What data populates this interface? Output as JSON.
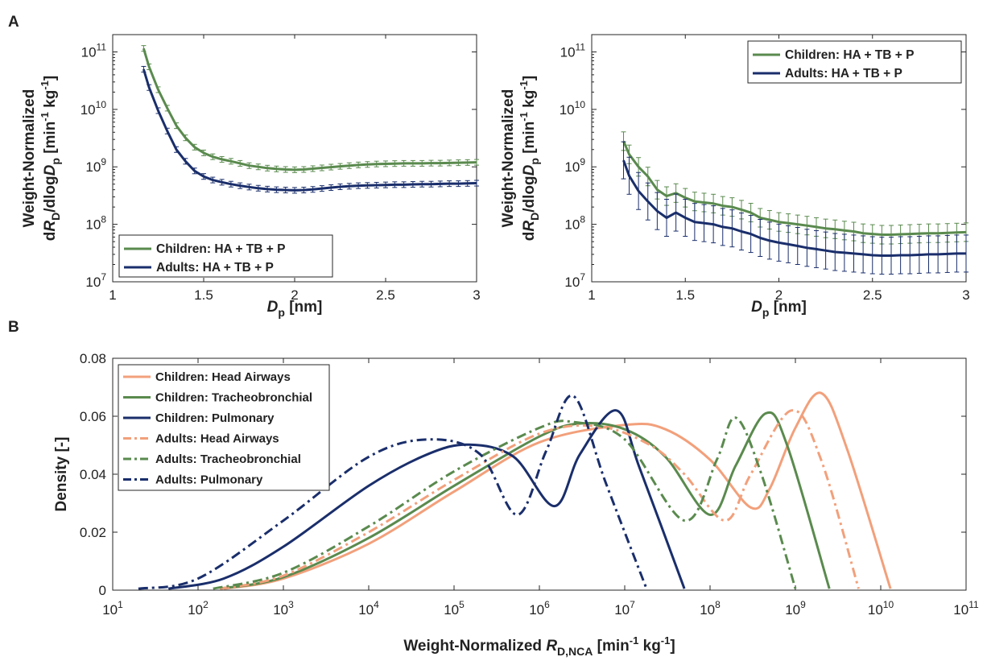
{
  "panels": {
    "a": "A",
    "b": "B"
  },
  "chart_data": [
    {
      "type": "line",
      "panel": "A",
      "xlabel": "D p [nm]",
      "ylabel_line1": "Weight-Normalized",
      "ylabel_line2": "dR D /dlogD p [min-1 kg-1]",
      "xlim": [
        1,
        3
      ],
      "ylim": [
        10000000.0,
        200000000000.0
      ],
      "yscale": "log",
      "xticks": [
        "1",
        "1.5",
        "2",
        "2.5",
        "3"
      ],
      "yticks": [
        "10^7",
        "10^8",
        "10^9",
        "10^10",
        "10^11"
      ],
      "legend_position": "bottom-left",
      "x": [
        1.17,
        1.2,
        1.25,
        1.3,
        1.35,
        1.4,
        1.45,
        1.5,
        1.55,
        1.6,
        1.65,
        1.7,
        1.75,
        1.8,
        1.85,
        1.9,
        1.95,
        2.0,
        2.05,
        2.1,
        2.15,
        2.2,
        2.25,
        2.3,
        2.35,
        2.4,
        2.45,
        2.5,
        2.55,
        2.6,
        2.65,
        2.7,
        2.75,
        2.8,
        2.85,
        2.9,
        2.95,
        3.0
      ],
      "series": [
        {
          "name": "Children: HA + TB + P",
          "color": "#5a8a4e",
          "values": [
            115000000000.0,
            55000000000.0,
            22000000000.0,
            10500000000.0,
            5200000000.0,
            3200000000.0,
            2200000000.0,
            1750000000.0,
            1500000000.0,
            1350000000.0,
            1250000000.0,
            1150000000.0,
            1050000000.0,
            1000000000.0,
            950000000.0,
            920000000.0,
            900000000.0,
            890000000.0,
            900000000.0,
            930000000.0,
            960000000.0,
            990000000.0,
            1020000000.0,
            1050000000.0,
            1080000000.0,
            1100000000.0,
            1120000000.0,
            1130000000.0,
            1140000000.0,
            1150000000.0,
            1150000000.0,
            1150000000.0,
            1160000000.0,
            1160000000.0,
            1170000000.0,
            1180000000.0,
            1190000000.0,
            1200000000.0
          ]
        },
        {
          "name": "Adults: HA + TB + P",
          "color": "#1a2e6b",
          "values": [
            50000000000.0,
            24000000000.0,
            9500000000.0,
            4200000000.0,
            2000000000.0,
            1250000000.0,
            850000000.0,
            680000000.0,
            590000000.0,
            540000000.0,
            500000000.0,
            470000000.0,
            445000000.0,
            425000000.0,
            410000000.0,
            400000000.0,
            395000000.0,
            390000000.0,
            395000000.0,
            405000000.0,
            420000000.0,
            435000000.0,
            450000000.0,
            460000000.0,
            470000000.0,
            475000000.0,
            480000000.0,
            485000000.0,
            490000000.0,
            490000000.0,
            495000000.0,
            500000000.0,
            500000000.0,
            505000000.0,
            510000000.0,
            510000000.0,
            515000000.0,
            520000000.0
          ]
        }
      ]
    },
    {
      "type": "line",
      "panel": "A",
      "xlabel": "D p [nm]",
      "ylabel_line1": "Weight-Normalized",
      "ylabel_line2": "dR D /dlogD p [min-1 kg-1]",
      "xlim": [
        1,
        3
      ],
      "ylim": [
        10000000.0,
        200000000000.0
      ],
      "yscale": "log",
      "xticks": [
        "1",
        "1.5",
        "2",
        "2.5",
        "3"
      ],
      "yticks": [
        "10^7",
        "10^8",
        "10^9",
        "10^10",
        "10^11"
      ],
      "legend_position": "top-right",
      "x": [
        1.17,
        1.2,
        1.25,
        1.3,
        1.35,
        1.4,
        1.45,
        1.5,
        1.55,
        1.6,
        1.65,
        1.7,
        1.75,
        1.8,
        1.85,
        1.9,
        1.95,
        2.0,
        2.05,
        2.1,
        2.15,
        2.2,
        2.25,
        2.3,
        2.35,
        2.4,
        2.45,
        2.5,
        2.55,
        2.6,
        2.65,
        2.7,
        2.75,
        2.8,
        2.85,
        2.9,
        2.95,
        3.0
      ],
      "series": [
        {
          "name": "Children: HA + TB + P",
          "color": "#5a8a4e",
          "values": [
            2800000000.0,
            1650000000.0,
            1000000000.0,
            680000000.0,
            400000000.0,
            310000000.0,
            350000000.0,
            290000000.0,
            250000000.0,
            240000000.0,
            230000000.0,
            210000000.0,
            200000000.0,
            180000000.0,
            160000000.0,
            130000000.0,
            120000000.0,
            110000000.0,
            105000000.0,
            100000000.0,
            95000000.0,
            90000000.0,
            85000000.0,
            82000000.0,
            78000000.0,
            75000000.0,
            70000000.0,
            68000000.0,
            66000000.0,
            66000000.0,
            67000000.0,
            68000000.0,
            69000000.0,
            70000000.0,
            70000000.0,
            71000000.0,
            72000000.0,
            73000000.0
          ]
        },
        {
          "name": "Adults: HA + TB + P",
          "color": "#1a2e6b",
          "values": [
            1300000000.0,
            700000000.0,
            380000000.0,
            250000000.0,
            170000000.0,
            130000000.0,
            160000000.0,
            130000000.0,
            110000000.0,
            105000000.0,
            100000000.0,
            90000000.0,
            85000000.0,
            75000000.0,
            68000000.0,
            58000000.0,
            52000000.0,
            48000000.0,
            45000000.0,
            42000000.0,
            39000000.0,
            37000000.0,
            35000000.0,
            33000000.0,
            32000000.0,
            31000000.0,
            30000000.0,
            29000000.0,
            28500000.0,
            28500000.0,
            29000000.0,
            29000000.0,
            29500000.0,
            30000000.0,
            30000000.0,
            30500000.0,
            31000000.0,
            31000000.0
          ]
        }
      ]
    },
    {
      "type": "line",
      "panel": "B",
      "xlabel": "Weight-Normalized R D,NCA [min-1 kg-1]",
      "ylabel": "Density [-]",
      "xscale": "log",
      "xlim": [
        10,
        100000000000.0
      ],
      "ylim": [
        0,
        0.08
      ],
      "xticks": [
        "10^1",
        "10^2",
        "10^3",
        "10^4",
        "10^5",
        "10^6",
        "10^7",
        "10^8",
        "10^9",
        "10^10",
        "10^11"
      ],
      "yticks": [
        "0",
        "0.02",
        "0.04",
        "0.06",
        "0.08"
      ],
      "legend_position": "top-left",
      "series": [
        {
          "name": "Children: Head Airways",
          "color": "#f2a07b",
          "dash": "solid",
          "x": [
            200,
            1000,
            10000.0,
            100000.0,
            1000000.0,
            10000000.0,
            30000000.0,
            100000000.0,
            300000000.0,
            500000000.0,
            1000000000.0,
            2000000000.0,
            4000000000.0,
            13000000000.0
          ],
          "values": [
            0.0005,
            0.004,
            0.016,
            0.034,
            0.051,
            0.057,
            0.0555,
            0.045,
            0.0285,
            0.035,
            0.056,
            0.068,
            0.049,
            0.0005
          ]
        },
        {
          "name": "Children: Tracheobronchial",
          "color": "#5a8a4e",
          "dash": "solid",
          "x": [
            180,
            1000,
            10000.0,
            100000.0,
            1000000.0,
            3000000.0,
            10000000.0,
            30000000.0,
            100000000.0,
            200000000.0,
            450000000.0,
            800000000.0,
            2500000000.0
          ],
          "values": [
            0.0005,
            0.0045,
            0.018,
            0.036,
            0.053,
            0.0575,
            0.0555,
            0.046,
            0.026,
            0.043,
            0.061,
            0.05,
            0.0005
          ]
        },
        {
          "name": "Children: Pulmonary",
          "color": "#1a2e6b",
          "dash": "solid",
          "x": [
            45,
            200,
            1000,
            10000.0,
            50000.0,
            150000.0,
            500000.0,
            1500000.0,
            3000000.0,
            8000000.0,
            15000000.0,
            50000000.0
          ],
          "values": [
            0.0005,
            0.004,
            0.015,
            0.036,
            0.047,
            0.0502,
            0.046,
            0.029,
            0.047,
            0.062,
            0.042,
            0.0005
          ]
        },
        {
          "name": "Adults: Head Airways",
          "color": "#f2a07b",
          "dash": "dashdot",
          "x": [
            180,
            1000,
            10000.0,
            100000.0,
            1000000.0,
            5000000.0,
            20000000.0,
            50000000.0,
            150000000.0,
            300000000.0,
            900000000.0,
            2000000000.0,
            5500000000.0
          ],
          "values": [
            0.0005,
            0.005,
            0.02,
            0.038,
            0.054,
            0.0565,
            0.05,
            0.04,
            0.024,
            0.04,
            0.062,
            0.045,
            0.0005
          ]
        },
        {
          "name": "Adults: Tracheobronchial",
          "color": "#5a8a4e",
          "dash": "dashdot",
          "x": [
            150,
            1000,
            10000.0,
            100000.0,
            1000000.0,
            2500000.0,
            10000000.0,
            50000000.0,
            120000000.0,
            200000000.0,
            400000000.0,
            1000000000.0
          ],
          "values": [
            0.0005,
            0.006,
            0.022,
            0.041,
            0.056,
            0.058,
            0.052,
            0.024,
            0.045,
            0.0595,
            0.04,
            0.0005
          ]
        },
        {
          "name": "Adults: Pulmonary",
          "color": "#1a2e6b",
          "dash": "dashdot",
          "x": [
            20,
            100,
            1000,
            10000.0,
            50000.0,
            200000.0,
            550000.0,
            1200000.0,
            2500000.0,
            6000000.0,
            18000000.0
          ],
          "values": [
            0.0005,
            0.004,
            0.024,
            0.046,
            0.052,
            0.047,
            0.026,
            0.048,
            0.067,
            0.037,
            0.0005
          ]
        }
      ]
    }
  ]
}
